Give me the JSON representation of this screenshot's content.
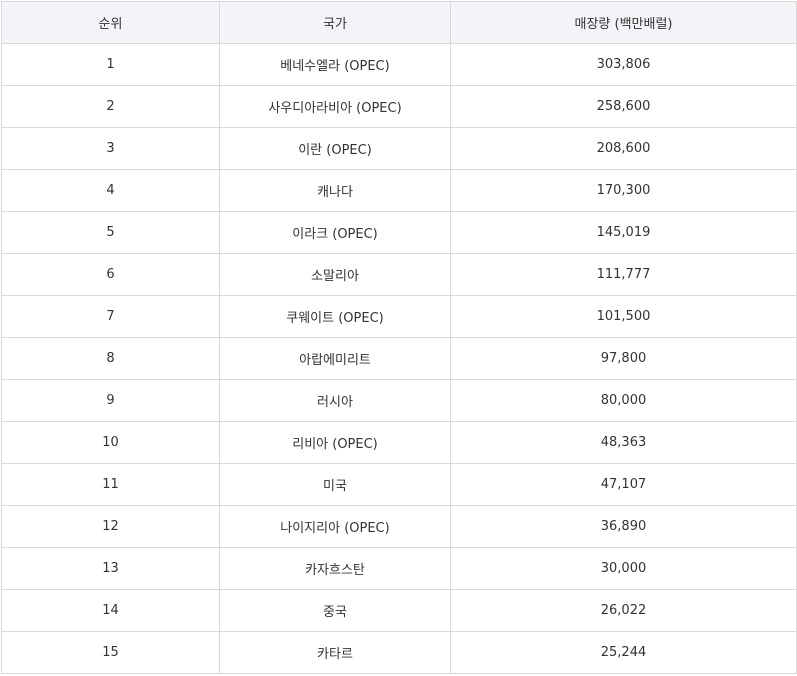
{
  "table": {
    "headers": [
      "순위",
      "국가",
      "매장량 (백만배럴)"
    ],
    "rows": [
      [
        "1",
        "베네수엘라 (OPEC)",
        "303,806"
      ],
      [
        "2",
        "사우디아라비아 (OPEC)",
        "258,600"
      ],
      [
        "3",
        "이란 (OPEC)",
        "208,600"
      ],
      [
        "4",
        "캐나다",
        "170,300"
      ],
      [
        "5",
        "이라크 (OPEC)",
        "145,019"
      ],
      [
        "6",
        "소말리아",
        "111,777"
      ],
      [
        "7",
        "쿠웨이트 (OPEC)",
        "101,500"
      ],
      [
        "8",
        "아랍에미리트",
        "97,800"
      ],
      [
        "9",
        "러시아",
        "80,000"
      ],
      [
        "10",
        "리비아 (OPEC)",
        "48,363"
      ],
      [
        "11",
        "미국",
        "47,107"
      ],
      [
        "12",
        "나이지리아 (OPEC)",
        "36,890"
      ],
      [
        "13",
        "카자흐스탄",
        "30,000"
      ],
      [
        "14",
        "중국",
        "26,022"
      ],
      [
        "15",
        "카타르",
        "25,244"
      ]
    ]
  }
}
